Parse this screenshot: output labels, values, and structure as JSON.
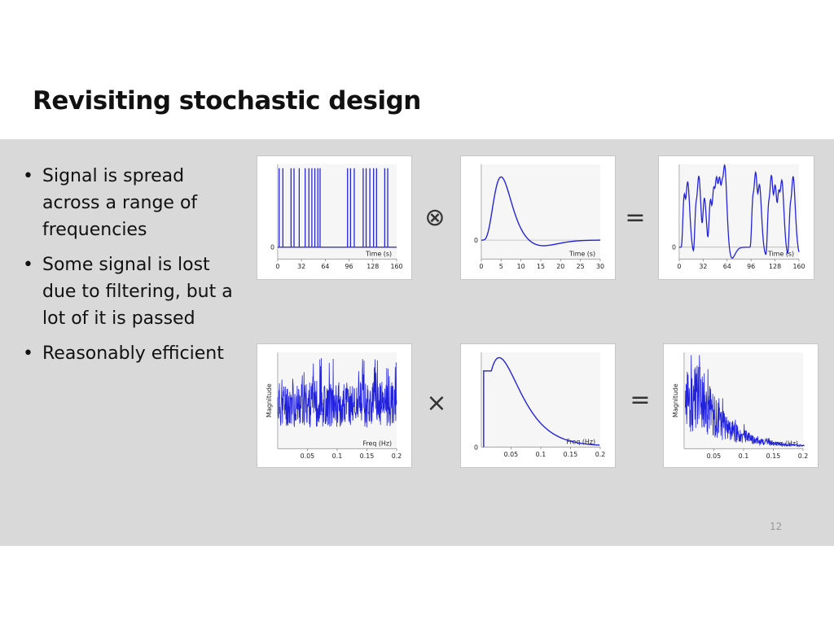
{
  "slide": {
    "title": "Revisiting stochastic design",
    "page_number": "12",
    "bullets": [
      "Signal is spread across a range of frequencies",
      "Some signal is lost due to filtering, but a lot of it is passed",
      "Reasonably efficient"
    ]
  },
  "operators": {
    "convolve": "⊗",
    "equals_top": "=",
    "multiply": "×",
    "equals_bottom": "="
  },
  "colors": {
    "signal": "#2222dd",
    "band": "#d9d9d9"
  },
  "chart_data": [
    {
      "type": "line",
      "name": "stimulus",
      "xlabel": "Time (s)",
      "ylabel": "",
      "x_ticks": [
        0,
        32,
        64,
        96,
        128,
        160
      ],
      "y_ticks": [
        0
      ],
      "xlim": [
        0,
        160
      ],
      "ylim": [
        -0.15,
        1.05
      ],
      "events": [
        2,
        7,
        18,
        22,
        29,
        37,
        42,
        46,
        50,
        54,
        57,
        94,
        98,
        103,
        115,
        119,
        124,
        129,
        133,
        144,
        148
      ]
    },
    {
      "type": "line",
      "name": "hrf",
      "xlabel": "Time (s)",
      "ylabel": "",
      "x_ticks": [
        0,
        5,
        10,
        15,
        20,
        25,
        30
      ],
      "y_ticks": [
        0
      ],
      "xlim": [
        0,
        30
      ],
      "ylim": [
        -0.3,
        1.2
      ]
    },
    {
      "type": "line",
      "name": "convolved",
      "xlabel": "Time (s)",
      "ylabel": "",
      "x_ticks": [
        0,
        32,
        64,
        96,
        128,
        160
      ],
      "y_ticks": [
        0
      ],
      "xlim": [
        0,
        160
      ],
      "ylim": [
        -0.2,
        1.4
      ]
    },
    {
      "type": "line",
      "name": "stimulus_spectrum",
      "xlabel": "Freq (Hz)",
      "ylabel": "Magnitude",
      "x_ticks": [
        0.05,
        0.1,
        0.15,
        0.2
      ],
      "xlim": [
        0,
        0.2
      ],
      "ylim": [
        0,
        1
      ]
    },
    {
      "type": "line",
      "name": "hrf_spectrum",
      "xlabel": "Freq (Hz)",
      "ylabel": "",
      "x_ticks": [
        0.05,
        0.1,
        0.15,
        0.2
      ],
      "y_ticks": [
        0
      ],
      "xlim": [
        0,
        0.2
      ],
      "ylim": [
        0,
        1.05
      ]
    },
    {
      "type": "line",
      "name": "output_spectrum",
      "xlabel": "Freq (Hz)",
      "ylabel": "Magnitude",
      "x_ticks": [
        0.05,
        0.1,
        0.15,
        0.2
      ],
      "xlim": [
        0,
        0.2
      ],
      "ylim": [
        0,
        1
      ]
    }
  ]
}
